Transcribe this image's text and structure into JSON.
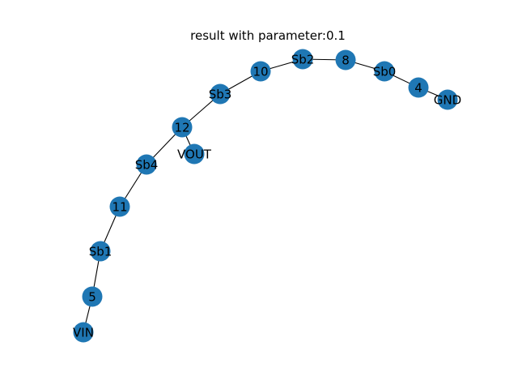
{
  "figure": {
    "title": "result with parameter:0.1",
    "node_color": "#1f77b4",
    "edge_color": "#000000"
  },
  "graph": {
    "nodes": [
      {
        "id": "VIN",
        "label": "VIN"
      },
      {
        "id": "5",
        "label": "5"
      },
      {
        "id": "Sb1",
        "label": "Sb1"
      },
      {
        "id": "11",
        "label": "11"
      },
      {
        "id": "Sb4",
        "label": "Sb4"
      },
      {
        "id": "12",
        "label": "12"
      },
      {
        "id": "VOUT",
        "label": "VOUT"
      },
      {
        "id": "Sb3",
        "label": "Sb3"
      },
      {
        "id": "10",
        "label": "10"
      },
      {
        "id": "Sb2",
        "label": "Sb2"
      },
      {
        "id": "8",
        "label": "8"
      },
      {
        "id": "Sb0",
        "label": "Sb0"
      },
      {
        "id": "4",
        "label": "4"
      },
      {
        "id": "GND",
        "label": "GND"
      }
    ],
    "edges": [
      [
        "VIN",
        "5"
      ],
      [
        "5",
        "Sb1"
      ],
      [
        "Sb1",
        "11"
      ],
      [
        "11",
        "Sb4"
      ],
      [
        "Sb4",
        "12"
      ],
      [
        "12",
        "VOUT"
      ],
      [
        "12",
        "Sb3"
      ],
      [
        "Sb3",
        "10"
      ],
      [
        "10",
        "Sb2"
      ],
      [
        "Sb2",
        "8"
      ],
      [
        "8",
        "Sb0"
      ],
      [
        "Sb0",
        "4"
      ],
      [
        "4",
        "GND"
      ]
    ]
  }
}
